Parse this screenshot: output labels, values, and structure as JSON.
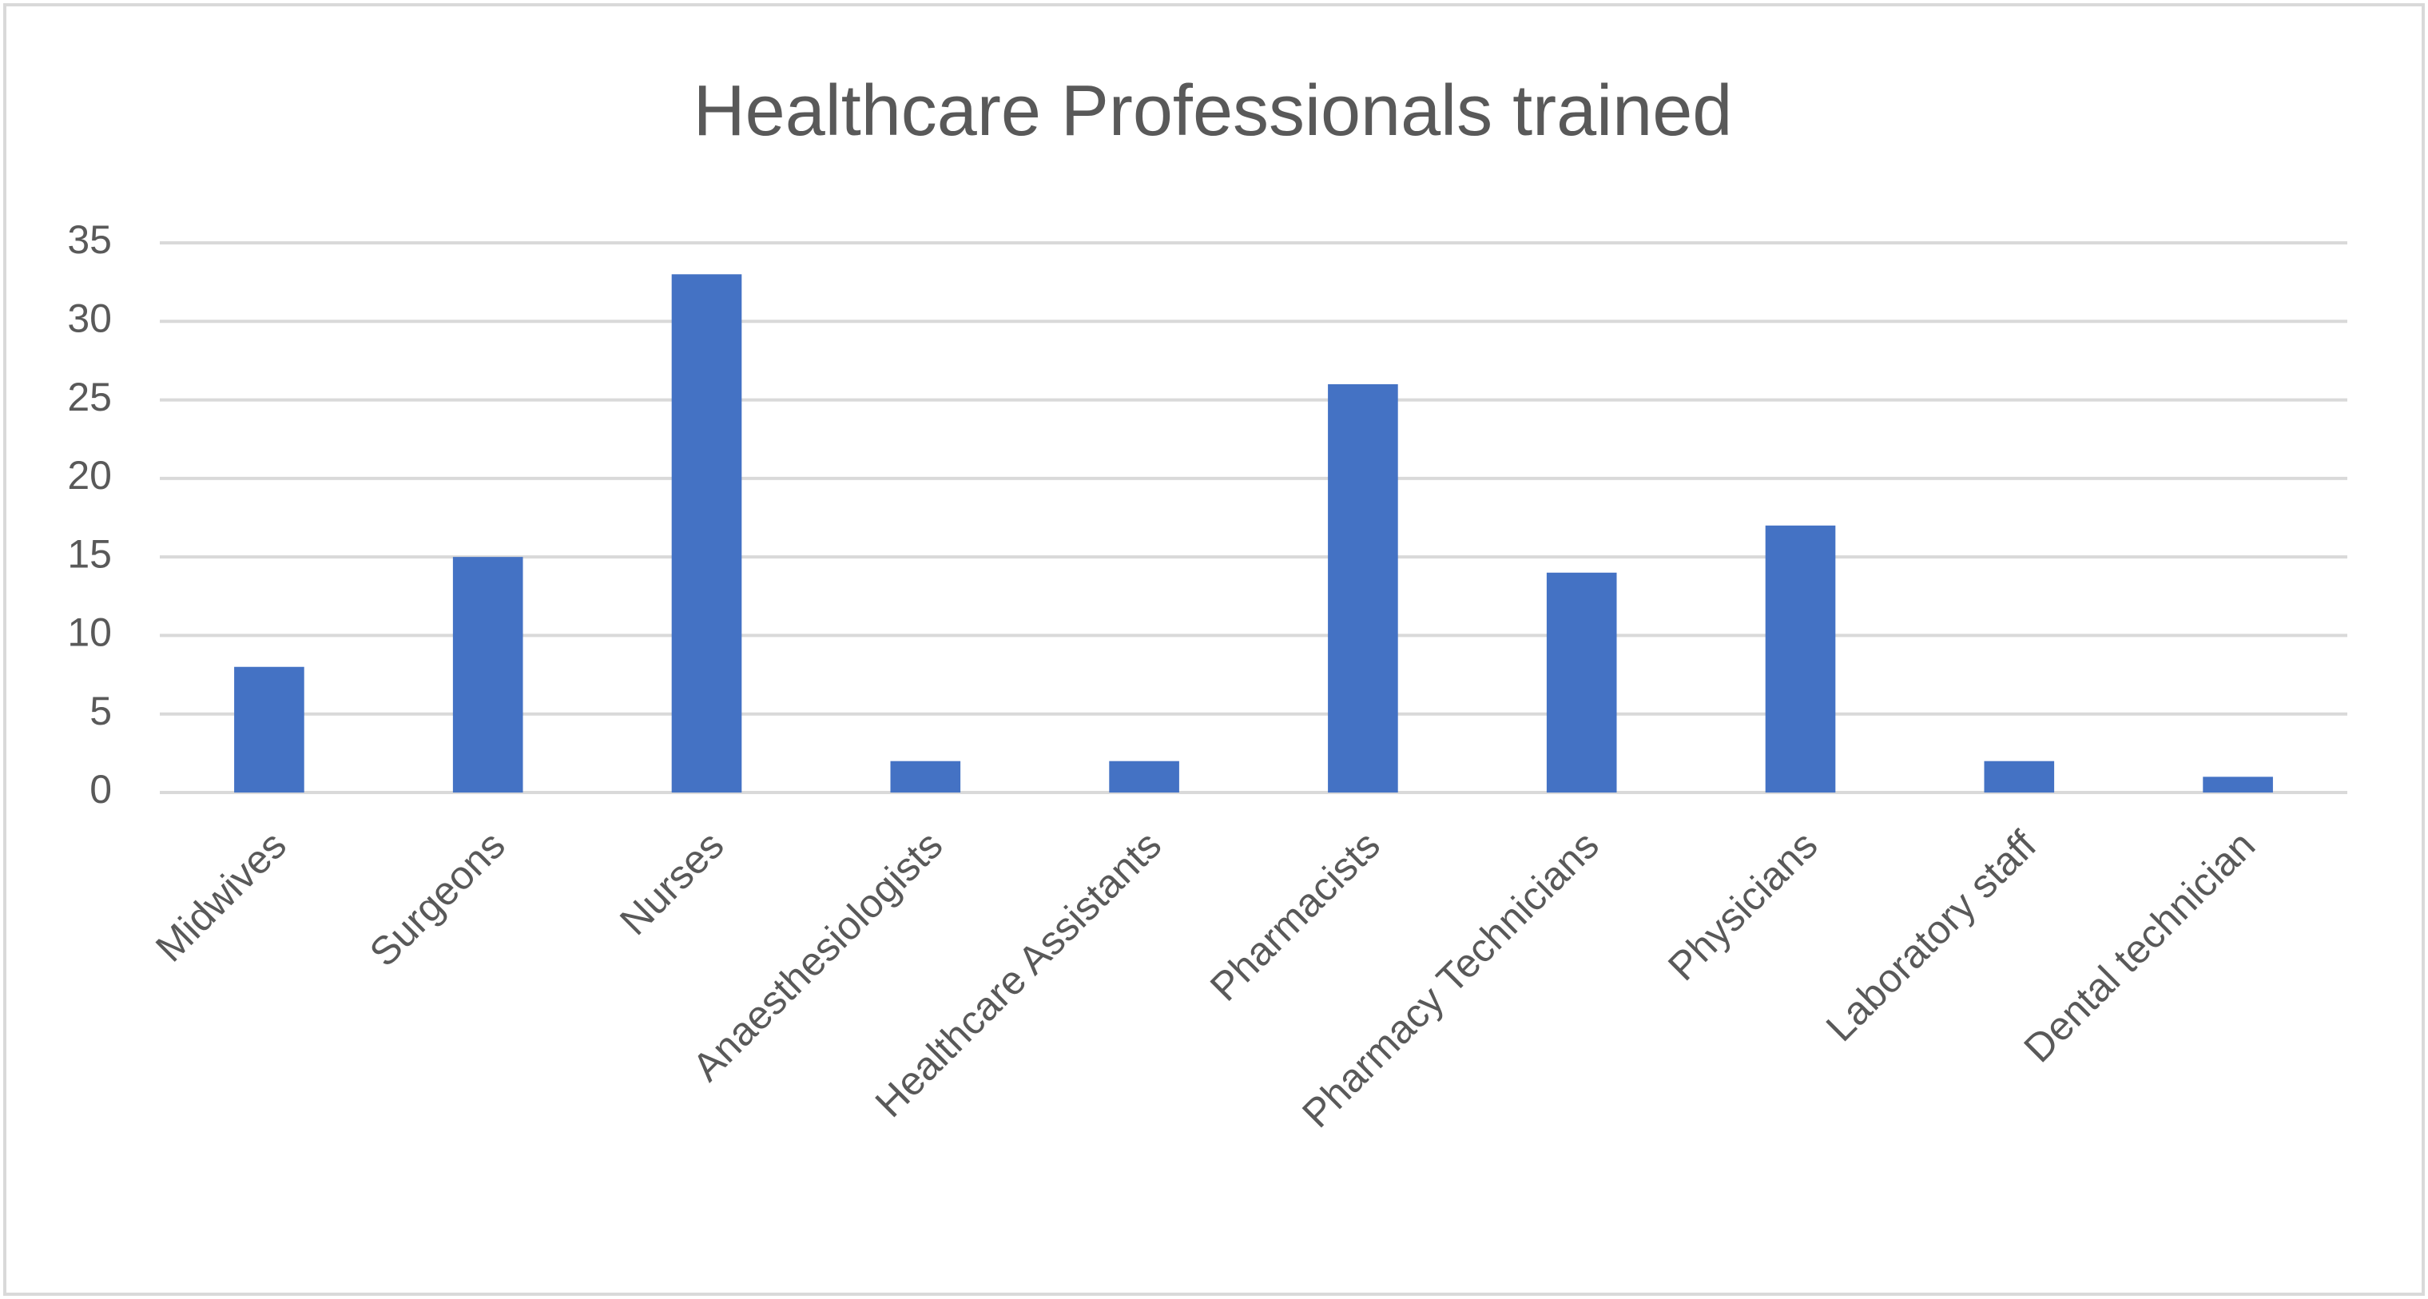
{
  "chart_data": {
    "type": "bar",
    "title": "Healthcare Professionals trained",
    "categories": [
      "Midwives",
      "Surgeons",
      "Nurses",
      "Anaesthesiologists",
      "Healthcare Assistants",
      "Pharmacists",
      "Pharmacy Technicians",
      "Physicians",
      "Laboratory staff",
      "Dental technician"
    ],
    "values": [
      8,
      15,
      33,
      2,
      2,
      26,
      14,
      17,
      2,
      1
    ],
    "color": "#4472c4",
    "ylim": [
      0,
      35
    ],
    "yticks": [
      0,
      5,
      10,
      15,
      20,
      25,
      30,
      35
    ],
    "grid": true
  }
}
